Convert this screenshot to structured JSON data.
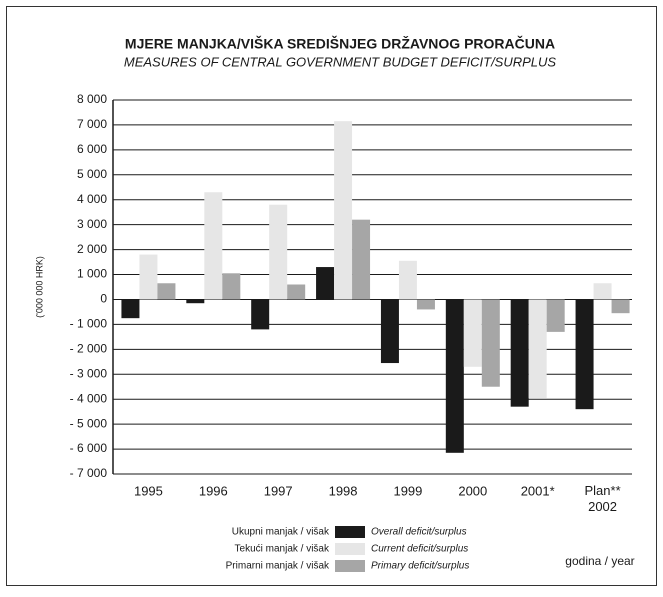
{
  "chart_data": {
    "type": "bar",
    "title": "MJERE MANJKA/VIŠKA SREDIŠNJEG DRŽAVNOG PRORAČUNA",
    "subtitle": "MEASURES OF CENTRAL GOVERNMENT BUDGET DEFICIT/SURPLUS",
    "y_label": "('000 000 HRK)",
    "x_label": "godina / year",
    "categories": [
      "1995",
      "1996",
      "1997",
      "1998",
      "1999",
      "2000",
      "2001*",
      "Plan** 2002"
    ],
    "series": [
      {
        "name": "Overall deficit/surplus",
        "name_hr": "Ukupni manjak / višak",
        "color": "#1a1a1a",
        "values": [
          -750,
          -150,
          -1200,
          1300,
          -2550,
          -6150,
          -4300,
          -4400
        ]
      },
      {
        "name": "Current deficit/surplus",
        "name_hr": "Tekući manjak / višak",
        "color": "#e6e6e6",
        "values": [
          1800,
          4300,
          3800,
          7150,
          1550,
          -2700,
          -3950,
          650
        ]
      },
      {
        "name": "Primary deficit/surplus",
        "name_hr": "Primarni manjak / višak",
        "color": "#a6a6a6",
        "values": [
          650,
          1050,
          600,
          3200,
          -400,
          -3500,
          -1300,
          -550
        ]
      }
    ],
    "ylim": [
      -7000,
      8000
    ],
    "yticks": [
      {
        "value": 8000,
        "label": "8 000"
      },
      {
        "value": 7000,
        "label": "7 000"
      },
      {
        "value": 6000,
        "label": "6 000"
      },
      {
        "value": 5000,
        "label": "5 000"
      },
      {
        "value": 4000,
        "label": "4 000"
      },
      {
        "value": 3000,
        "label": "3 000"
      },
      {
        "value": 2000,
        "label": "2 000"
      },
      {
        "value": 1000,
        "label": "1 000"
      },
      0,
      {
        "value": -1000,
        "label": "- 1 000"
      },
      {
        "value": -2000,
        "label": "- 2 000"
      },
      {
        "value": -3000,
        "label": "- 3 000"
      },
      {
        "value": -4000,
        "label": "- 4 000"
      },
      {
        "value": -5000,
        "label": "- 5 000"
      },
      {
        "value": -6000,
        "label": "- 6 000"
      },
      {
        "value": -7000,
        "label": "- 7 000"
      }
    ],
    "grid": true
  }
}
